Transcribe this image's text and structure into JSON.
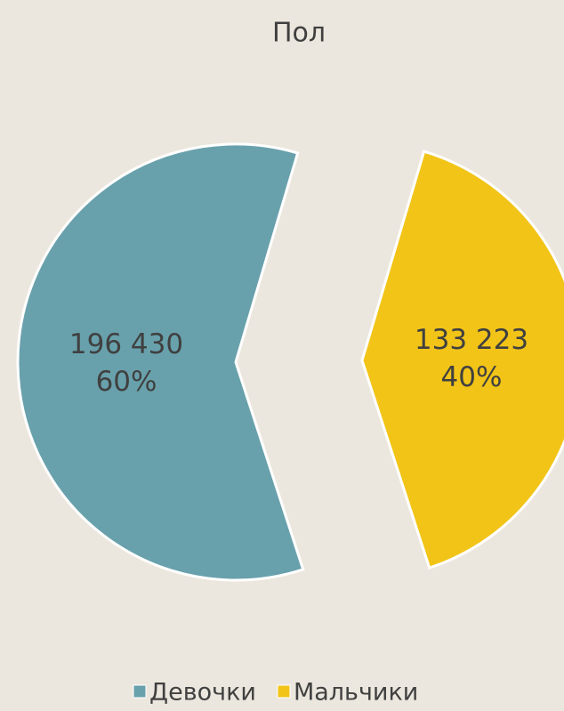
{
  "chart_data": {
    "type": "pie",
    "title": "Пол",
    "categories": [
      "Девочки",
      "Мальчики"
    ],
    "values": [
      196430,
      133223
    ],
    "value_labels": [
      "196 430",
      "133 223"
    ],
    "percent_labels": [
      "60%",
      "40%"
    ],
    "colors": [
      "#68a1ac",
      "#f2c418"
    ],
    "start_angle": 162,
    "legend": "bottom"
  }
}
